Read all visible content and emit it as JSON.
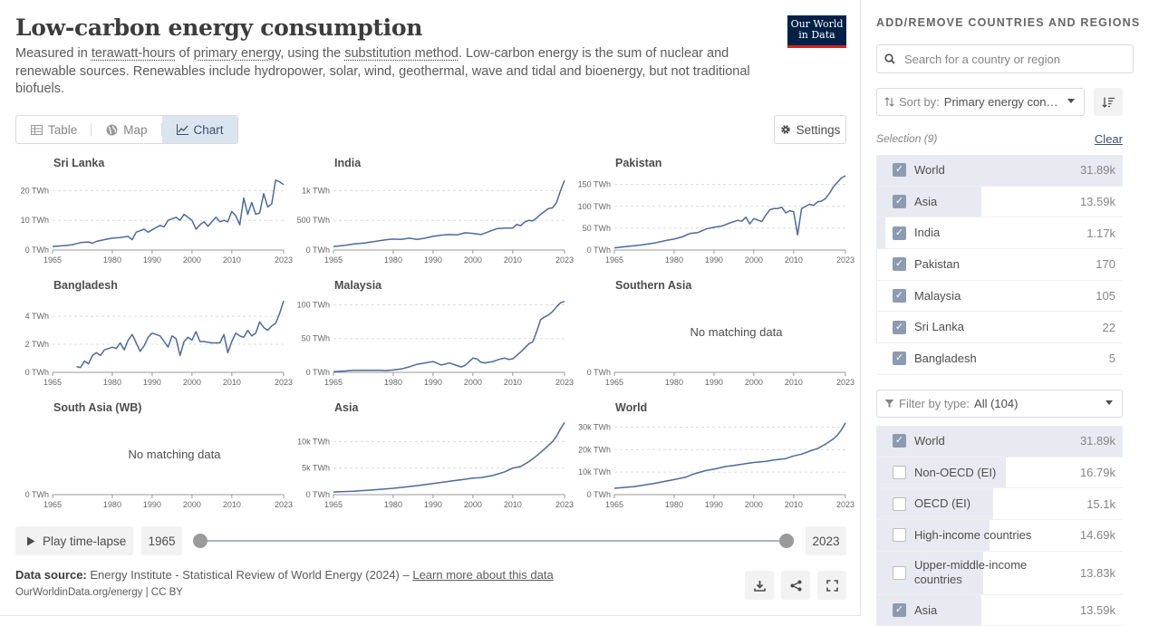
{
  "header": {
    "title": "Low-carbon energy consumption",
    "subtitle_pre": "Measured in ",
    "subtitle_link1": "terawatt-hours",
    "subtitle_mid1": " of ",
    "subtitle_link2": "primary energy",
    "subtitle_mid2": ", using the ",
    "subtitle_link3": "substitution method",
    "subtitle_post": ". Low-carbon energy is the sum of nuclear and renewable sources. Renewables include hydropower, solar, wind, geothermal, wave and tidal and bioenergy, but not traditional biofuels.",
    "logo_line1": "Our World",
    "logo_line2": "in Data"
  },
  "tabs": [
    {
      "label": "Table",
      "icon": "table-icon"
    },
    {
      "label": "Map",
      "icon": "globe-icon"
    },
    {
      "label": "Chart",
      "icon": "line-chart-icon",
      "active": true
    }
  ],
  "settings_label": "Settings",
  "no_data_label": "No matching data",
  "chart_data": [
    {
      "type": "line",
      "title": "Sri Lanka",
      "y_ticks": [
        "0 TWh",
        "10 TWh",
        "20 TWh"
      ],
      "ylim": [
        0,
        25
      ],
      "x_ticks": [
        "1965",
        "1980",
        "1990",
        "2000",
        "2010",
        "2023"
      ],
      "xlim": [
        1965,
        2023
      ],
      "points": [
        [
          1965,
          1.2
        ],
        [
          1968,
          1.5
        ],
        [
          1970,
          1.8
        ],
        [
          1972,
          2.5
        ],
        [
          1974,
          2.7
        ],
        [
          1975,
          2.3
        ],
        [
          1976,
          2.9
        ],
        [
          1978,
          3.5
        ],
        [
          1980,
          4.0
        ],
        [
          1982,
          4.2
        ],
        [
          1984,
          4.6
        ],
        [
          1985,
          3.5
        ],
        [
          1986,
          6.0
        ],
        [
          1988,
          7.0
        ],
        [
          1989,
          6.0
        ],
        [
          1990,
          6.8
        ],
        [
          1992,
          8.3
        ],
        [
          1993,
          7.8
        ],
        [
          1994,
          10.0
        ],
        [
          1996,
          11.0
        ],
        [
          1997,
          10.0
        ],
        [
          1998,
          12.0
        ],
        [
          2000,
          10.0
        ],
        [
          2001,
          7.0
        ],
        [
          2002,
          8.5
        ],
        [
          2003,
          9.5
        ],
        [
          2004,
          8.0
        ],
        [
          2005,
          9.5
        ],
        [
          2006,
          11.0
        ],
        [
          2007,
          9.5
        ],
        [
          2008,
          10.0
        ],
        [
          2009,
          9.5
        ],
        [
          2010,
          13.0
        ],
        [
          2011,
          11.5
        ],
        [
          2012,
          8.5
        ],
        [
          2013,
          17.5
        ],
        [
          2014,
          12.0
        ],
        [
          2015,
          16.0
        ],
        [
          2016,
          12.0
        ],
        [
          2017,
          12.5
        ],
        [
          2018,
          19.0
        ],
        [
          2019,
          14.5
        ],
        [
          2020,
          15.5
        ],
        [
          2021,
          23.5
        ],
        [
          2022,
          23.0
        ],
        [
          2023,
          22.0
        ]
      ]
    },
    {
      "type": "line",
      "title": "India",
      "y_ticks": [
        "0 TWh",
        "500 TWh",
        "1k TWh"
      ],
      "ylim": [
        0,
        1250
      ],
      "x_ticks": [
        "1965",
        "1980",
        "1990",
        "2000",
        "2010",
        "2023"
      ],
      "xlim": [
        1965,
        2023
      ],
      "points": [
        [
          1965,
          60
        ],
        [
          1968,
          80
        ],
        [
          1970,
          100
        ],
        [
          1973,
          120
        ],
        [
          1975,
          140
        ],
        [
          1978,
          170
        ],
        [
          1980,
          185
        ],
        [
          1982,
          180
        ],
        [
          1984,
          200
        ],
        [
          1986,
          180
        ],
        [
          1988,
          200
        ],
        [
          1990,
          230
        ],
        [
          1992,
          250
        ],
        [
          1994,
          260
        ],
        [
          1996,
          255
        ],
        [
          1998,
          290
        ],
        [
          2000,
          280
        ],
        [
          2002,
          260
        ],
        [
          2004,
          310
        ],
        [
          2006,
          360
        ],
        [
          2008,
          370
        ],
        [
          2010,
          370
        ],
        [
          2011,
          430
        ],
        [
          2012,
          410
        ],
        [
          2013,
          470
        ],
        [
          2014,
          500
        ],
        [
          2015,
          490
        ],
        [
          2016,
          540
        ],
        [
          2017,
          600
        ],
        [
          2018,
          650
        ],
        [
          2019,
          700
        ],
        [
          2020,
          710
        ],
        [
          2021,
          800
        ],
        [
          2022,
          1000
        ],
        [
          2023,
          1170
        ]
      ]
    },
    {
      "type": "line",
      "title": "Pakistan",
      "y_ticks": [
        "0 TWh",
        "50 TWh",
        "100 TWh",
        "150 TWh"
      ],
      "ylim": [
        0,
        170
      ],
      "x_ticks": [
        "1965",
        "1980",
        "1990",
        "2000",
        "2010",
        "2023"
      ],
      "xlim": [
        1965,
        2023
      ],
      "points": [
        [
          1965,
          5
        ],
        [
          1968,
          8
        ],
        [
          1970,
          10
        ],
        [
          1972,
          12
        ],
        [
          1975,
          16
        ],
        [
          1978,
          22
        ],
        [
          1980,
          25
        ],
        [
          1982,
          30
        ],
        [
          1984,
          38
        ],
        [
          1986,
          40
        ],
        [
          1988,
          48
        ],
        [
          1990,
          52
        ],
        [
          1992,
          55
        ],
        [
          1994,
          62
        ],
        [
          1996,
          68
        ],
        [
          1997,
          66
        ],
        [
          1998,
          75
        ],
        [
          1999,
          60
        ],
        [
          2000,
          72
        ],
        [
          2002,
          65
        ],
        [
          2003,
          80
        ],
        [
          2004,
          92
        ],
        [
          2005,
          95
        ],
        [
          2006,
          95
        ],
        [
          2007,
          98
        ],
        [
          2008,
          85
        ],
        [
          2009,
          90
        ],
        [
          2010,
          88
        ],
        [
          2011,
          35
        ],
        [
          2012,
          95
        ],
        [
          2013,
          100
        ],
        [
          2014,
          105
        ],
        [
          2015,
          102
        ],
        [
          2016,
          110
        ],
        [
          2017,
          112
        ],
        [
          2018,
          118
        ],
        [
          2019,
          130
        ],
        [
          2020,
          145
        ],
        [
          2021,
          155
        ],
        [
          2022,
          165
        ],
        [
          2023,
          170
        ]
      ]
    },
    {
      "type": "line",
      "title": "Bangladesh",
      "y_ticks": [
        "0 TWh",
        "2 TWh",
        "4 TWh"
      ],
      "ylim": [
        0,
        5.3
      ],
      "x_ticks": [
        "1965",
        "1980",
        "1990",
        "2000",
        "2010",
        "2023"
      ],
      "xlim": [
        1965,
        2023
      ],
      "points": [
        [
          1971,
          0.4
        ],
        [
          1972,
          0.35
        ],
        [
          1973,
          0.8
        ],
        [
          1974,
          0.6
        ],
        [
          1975,
          1.2
        ],
        [
          1976,
          1.4
        ],
        [
          1977,
          1.2
        ],
        [
          1978,
          1.6
        ],
        [
          1980,
          1.8
        ],
        [
          1981,
          1.7
        ],
        [
          1982,
          2.1
        ],
        [
          1983,
          1.6
        ],
        [
          1984,
          2.3
        ],
        [
          1985,
          2.7
        ],
        [
          1986,
          2.1
        ],
        [
          1987,
          1.5
        ],
        [
          1988,
          1.9
        ],
        [
          1989,
          2.5
        ],
        [
          1990,
          2.8
        ],
        [
          1992,
          2.6
        ],
        [
          1993,
          2.2
        ],
        [
          1994,
          1.8
        ],
        [
          1995,
          2.6
        ],
        [
          1996,
          2.4
        ],
        [
          1997,
          1.2
        ],
        [
          1998,
          2.2
        ],
        [
          1999,
          2.5
        ],
        [
          2000,
          2.3
        ],
        [
          2001,
          2.9
        ],
        [
          2002,
          2.2
        ],
        [
          2003,
          2.2
        ],
        [
          2005,
          2.1
        ],
        [
          2007,
          2.1
        ],
        [
          2008,
          2.7
        ],
        [
          2009,
          1.4
        ],
        [
          2010,
          2.2
        ],
        [
          2011,
          2.8
        ],
        [
          2012,
          2.6
        ],
        [
          2013,
          2.5
        ],
        [
          2014,
          3.0
        ],
        [
          2015,
          2.6
        ],
        [
          2016,
          2.8
        ],
        [
          2017,
          3.6
        ],
        [
          2018,
          3.2
        ],
        [
          2019,
          3.0
        ],
        [
          2020,
          3.3
        ],
        [
          2021,
          3.5
        ],
        [
          2022,
          4.2
        ],
        [
          2023,
          5.1
        ]
      ]
    },
    {
      "type": "line",
      "title": "Malaysia",
      "y_ticks": [
        "0 TWh",
        "50 TWh",
        "100 TWh"
      ],
      "ylim": [
        0,
        110
      ],
      "x_ticks": [
        "1965",
        "1980",
        "1990",
        "2000",
        "2010",
        "2023"
      ],
      "xlim": [
        1965,
        2023
      ],
      "points": [
        [
          1965,
          1
        ],
        [
          1968,
          2
        ],
        [
          1970,
          3
        ],
        [
          1972,
          3
        ],
        [
          1975,
          3
        ],
        [
          1977,
          3
        ],
        [
          1978,
          2.5
        ],
        [
          1980,
          3.5
        ],
        [
          1982,
          5
        ],
        [
          1984,
          8
        ],
        [
          1986,
          12
        ],
        [
          1988,
          14
        ],
        [
          1990,
          16
        ],
        [
          1992,
          11
        ],
        [
          1993,
          12
        ],
        [
          1994,
          14
        ],
        [
          1996,
          10
        ],
        [
          1997,
          8
        ],
        [
          1998,
          10
        ],
        [
          2000,
          21
        ],
        [
          2001,
          20
        ],
        [
          2002,
          15
        ],
        [
          2003,
          14
        ],
        [
          2005,
          16
        ],
        [
          2006,
          18
        ],
        [
          2007,
          20
        ],
        [
          2008,
          21
        ],
        [
          2009,
          19
        ],
        [
          2010,
          20
        ],
        [
          2011,
          25
        ],
        [
          2012,
          30
        ],
        [
          2013,
          36
        ],
        [
          2014,
          42
        ],
        [
          2015,
          45
        ],
        [
          2016,
          60
        ],
        [
          2017,
          78
        ],
        [
          2018,
          82
        ],
        [
          2019,
          85
        ],
        [
          2020,
          90
        ],
        [
          2021,
          97
        ],
        [
          2022,
          103
        ],
        [
          2023,
          105
        ]
      ]
    },
    {
      "type": "line",
      "title": "Southern Asia",
      "no_data": true,
      "y_ticks": [
        "0 TWh"
      ],
      "x_ticks": [
        "1965",
        "1980",
        "1990",
        "2000",
        "2010",
        "2023"
      ],
      "xlim": [
        1965,
        2023
      ],
      "points": []
    },
    {
      "type": "line",
      "title": "South Asia (WB)",
      "no_data": true,
      "y_ticks": [
        "0 TWh"
      ],
      "x_ticks": [
        "1965",
        "1980",
        "1990",
        "2000",
        "2010",
        "2023"
      ],
      "xlim": [
        1965,
        2023
      ],
      "points": []
    },
    {
      "type": "line",
      "title": "Asia",
      "y_ticks": [
        "0 TWh",
        "5k TWh",
        "10k TWh"
      ],
      "ylim": [
        0,
        14000
      ],
      "x_ticks": [
        "1965",
        "1980",
        "1990",
        "2000",
        "2010",
        "2023"
      ],
      "xlim": [
        1965,
        2023
      ],
      "points": [
        [
          1965,
          500
        ],
        [
          1970,
          650
        ],
        [
          1975,
          900
        ],
        [
          1980,
          1200
        ],
        [
          1985,
          1600
        ],
        [
          1990,
          2100
        ],
        [
          1995,
          2600
        ],
        [
          2000,
          3100
        ],
        [
          2002,
          3200
        ],
        [
          2005,
          3600
        ],
        [
          2008,
          4300
        ],
        [
          2010,
          5000
        ],
        [
          2012,
          5300
        ],
        [
          2014,
          6200
        ],
        [
          2016,
          7300
        ],
        [
          2018,
          8600
        ],
        [
          2020,
          10000
        ],
        [
          2021,
          11000
        ],
        [
          2022,
          12400
        ],
        [
          2023,
          13600
        ]
      ]
    },
    {
      "type": "line",
      "title": "World",
      "y_ticks": [
        "0 TWh",
        "10k TWh",
        "20k TWh",
        "30k TWh"
      ],
      "ylim": [
        0,
        33000
      ],
      "x_ticks": [
        "1965",
        "1980",
        "1990",
        "2000",
        "2010",
        "2023"
      ],
      "xlim": [
        1965,
        2023
      ],
      "points": [
        [
          1965,
          2800
        ],
        [
          1970,
          3600
        ],
        [
          1975,
          5000
        ],
        [
          1980,
          6700
        ],
        [
          1983,
          7800
        ],
        [
          1985,
          9200
        ],
        [
          1988,
          10700
        ],
        [
          1990,
          11300
        ],
        [
          1993,
          12500
        ],
        [
          1995,
          13000
        ],
        [
          1998,
          13800
        ],
        [
          2000,
          14300
        ],
        [
          2003,
          14800
        ],
        [
          2005,
          15400
        ],
        [
          2008,
          16000
        ],
        [
          2010,
          17200
        ],
        [
          2012,
          18000
        ],
        [
          2014,
          19300
        ],
        [
          2016,
          20500
        ],
        [
          2018,
          22400
        ],
        [
          2020,
          24800
        ],
        [
          2021,
          26500
        ],
        [
          2022,
          28800
        ],
        [
          2023,
          31900
        ]
      ]
    }
  ],
  "timeline": {
    "play_label": "Play time-lapse",
    "start_year": "1965",
    "end_year": "2023"
  },
  "footer": {
    "source_label": "Data source:",
    "source_text": " Energy Institute - Statistical Review of World Energy (2024) – ",
    "learn_more": "Learn more about this data",
    "site": "OurWorldinData.org/energy | CC BY"
  },
  "sidebar": {
    "title": "ADD/REMOVE COUNTRIES AND REGIONS",
    "search_placeholder": "Search for a country or region",
    "sort_prefix": "Sort by: ",
    "sort_value": "Primary energy consumption",
    "selection_label": "Selection (9)",
    "clear_label": "Clear",
    "selected": [
      {
        "name": "World",
        "value": "31.89k",
        "share": 1.0
      },
      {
        "name": "Asia",
        "value": "13.59k",
        "share": 0.426
      },
      {
        "name": "India",
        "value": "1.17k",
        "share": 0.037
      },
      {
        "name": "Pakistan",
        "value": "170",
        "share": 0.005
      },
      {
        "name": "Malaysia",
        "value": "105",
        "share": 0.003
      },
      {
        "name": "Sri Lanka",
        "value": "22",
        "share": 0.001
      },
      {
        "name": "Bangladesh",
        "value": "5",
        "share": 0.0
      }
    ],
    "filter_prefix": "Filter by type: ",
    "filter_value": "All (104)",
    "all_items": [
      {
        "name": "World",
        "value": "31.89k",
        "share": 1.0,
        "checked": true
      },
      {
        "name": "Non-OECD (EI)",
        "value": "16.79k",
        "share": 0.527,
        "checked": false
      },
      {
        "name": "OECD (EI)",
        "value": "15.1k",
        "share": 0.474,
        "checked": false
      },
      {
        "name": "High-income countries",
        "value": "14.69k",
        "share": 0.461,
        "checked": false
      },
      {
        "name": "Upper-middle-income countries",
        "value": "13.83k",
        "share": 0.434,
        "checked": false
      },
      {
        "name": "Asia",
        "value": "13.59k",
        "share": 0.426,
        "checked": true
      }
    ]
  }
}
